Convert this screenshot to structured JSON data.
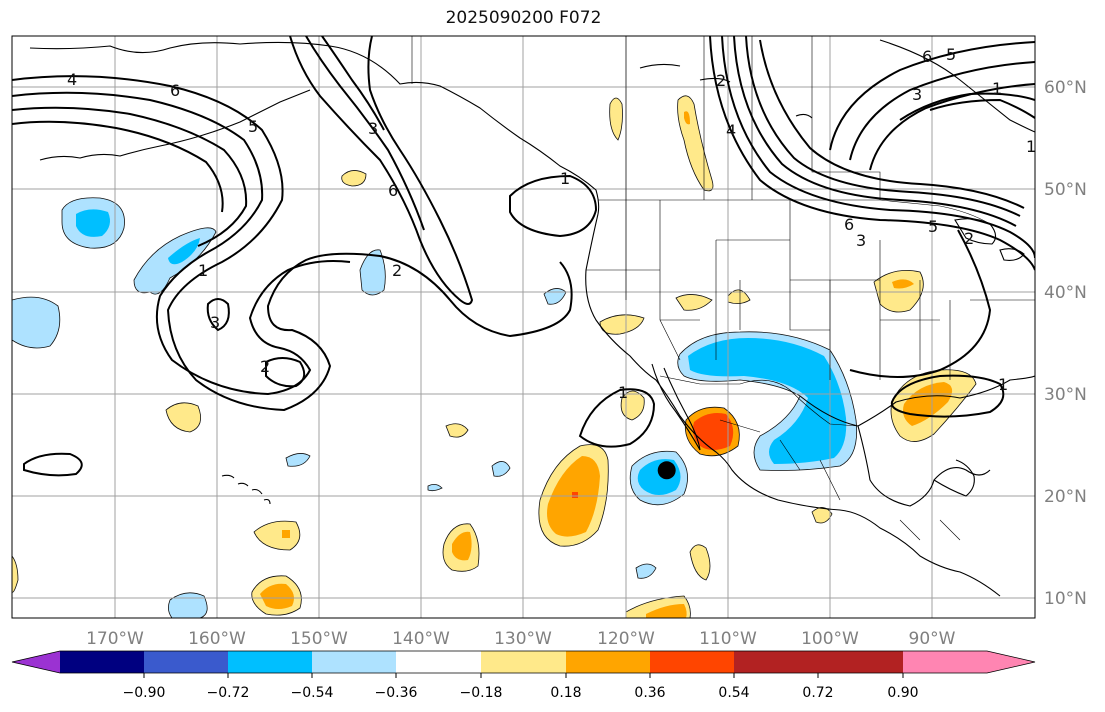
{
  "title": "2025090200 F072",
  "map": {
    "lon_range": [
      -180,
      -80
    ],
    "lat_range": [
      8,
      65
    ],
    "lon_ticks": [
      -170,
      -160,
      -150,
      -140,
      -130,
      -120,
      -110,
      -100,
      -90
    ],
    "lon_labels": [
      "170°W",
      "160°W",
      "150°W",
      "140°W",
      "130°W",
      "120°W",
      "110°W",
      "100°W",
      "90°W"
    ],
    "lat_ticks": [
      10,
      20,
      30,
      40,
      50,
      60
    ],
    "lat_labels": [
      "10°N",
      "20°N",
      "30°N",
      "40°N",
      "50°N",
      "60°N"
    ],
    "storm_marker": {
      "lon": -116,
      "lat": 22.5
    }
  },
  "contour_labels": [
    "4",
    "6",
    "5",
    "3",
    "6",
    "2",
    "1",
    "3",
    "2",
    "1",
    "1",
    "2",
    "4",
    "6",
    "3",
    "5",
    "2",
    "1",
    "3",
    "6",
    "5",
    "1",
    "1"
  ],
  "colorbar": {
    "colors": [
      "#9b32d2",
      "#000080",
      "#3a5acd",
      "#00bfff",
      "#aee2ff",
      "#ffffff",
      "#ffe98a",
      "#ffa500",
      "#ff4500",
      "#b22222",
      "#ff85b2"
    ],
    "tick_values": [
      -0.9,
      -0.72,
      -0.54,
      -0.36,
      -0.18,
      0.18,
      0.36,
      0.54,
      0.72,
      0.9
    ],
    "tick_labels": [
      "−0.90",
      "−0.72",
      "−0.54",
      "−0.36",
      "−0.18",
      "0.18",
      "0.36",
      "0.54",
      "0.72",
      "0.90"
    ]
  }
}
